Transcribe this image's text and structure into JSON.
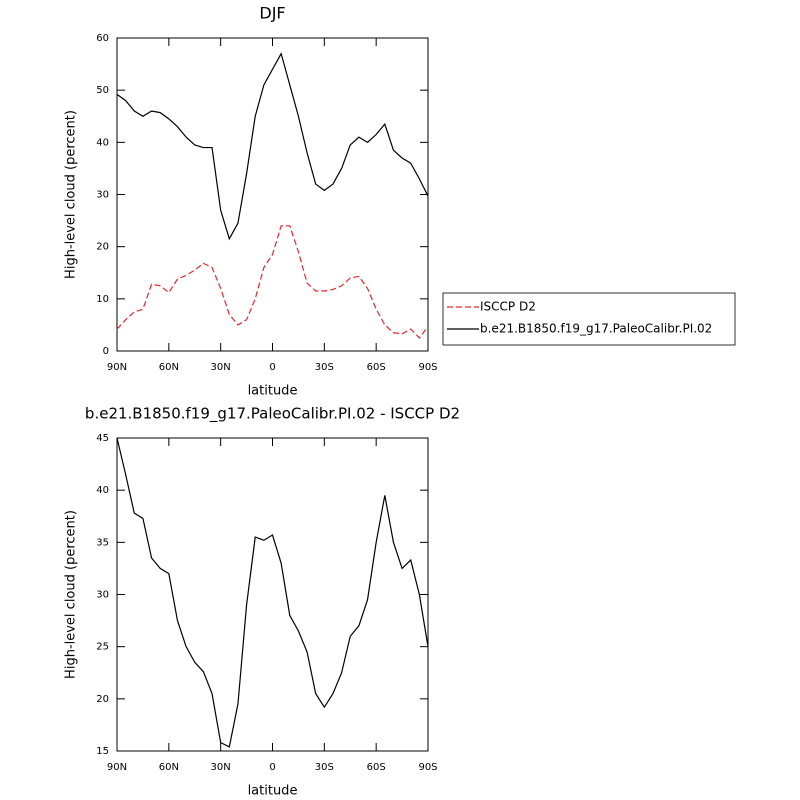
{
  "chart_data": [
    {
      "type": "line",
      "title": "DJF",
      "xlabel": "latitude",
      "ylabel": "High-level cloud (percent)",
      "x": [
        90,
        85,
        80,
        75,
        70,
        65,
        60,
        55,
        50,
        45,
        40,
        35,
        30,
        25,
        20,
        15,
        10,
        5,
        0,
        -5,
        -10,
        -15,
        -20,
        -25,
        -30,
        -35,
        -40,
        -45,
        -50,
        -55,
        -60,
        -65,
        -70,
        -75,
        -80,
        -85,
        -90
      ],
      "xlim": [
        90,
        -90
      ],
      "xticks": [
        {
          "value": 90,
          "label": "90N"
        },
        {
          "value": 60,
          "label": "60N"
        },
        {
          "value": 30,
          "label": "30N"
        },
        0,
        {
          "value": -30,
          "label": "30S"
        },
        {
          "value": -60,
          "label": "60S"
        },
        {
          "value": -90,
          "label": "90S"
        }
      ],
      "ylim": [
        0,
        60
      ],
      "yticks": [
        0,
        10,
        20,
        30,
        40,
        50,
        60
      ],
      "series": [
        {
          "name": "ISCCP D2",
          "color": "#e8262a",
          "dashed": true,
          "values": [
            4.2,
            6,
            7.5,
            8,
            12.8,
            12.5,
            11.2,
            13.8,
            14.5,
            15.5,
            16.8,
            16,
            12,
            7,
            5,
            6,
            10,
            16,
            18.5,
            24,
            24,
            19,
            13,
            11.5,
            11.5,
            11.8,
            12.5,
            14,
            14.3,
            12,
            8,
            5,
            3.5,
            3.3,
            4.2,
            2.5,
            4.7
          ]
        },
        {
          "name": "b.e21.B1850.f19_g17.PaleoCalibr.PI.02",
          "color": "#000000",
          "dashed": false,
          "values": [
            49.2,
            48,
            46,
            45,
            46,
            45.7,
            44.5,
            43,
            41,
            39.5,
            39,
            39,
            27,
            21.5,
            24.5,
            34,
            45,
            51,
            54,
            57,
            51,
            45,
            38,
            32,
            30.8,
            32,
            35,
            39.5,
            41,
            40,
            41.5,
            43.5,
            38.5,
            37,
            36,
            33,
            29.7
          ]
        }
      ]
    },
    {
      "type": "line",
      "title": "b.e21.B1850.f19_g17.PaleoCalibr.PI.02 - ISCCP D2",
      "xlabel": "latitude",
      "ylabel": "High-level cloud (percent)",
      "x": [
        90,
        85,
        80,
        75,
        70,
        65,
        60,
        55,
        50,
        45,
        40,
        35,
        30,
        25,
        20,
        15,
        10,
        5,
        0,
        -5,
        -10,
        -15,
        -20,
        -25,
        -30,
        -35,
        -40,
        -45,
        -50,
        -55,
        -60,
        -65,
        -70,
        -75,
        -80,
        -85,
        -90
      ],
      "xlim": [
        90,
        -90
      ],
      "xticks": [
        {
          "value": 90,
          "label": "90N"
        },
        {
          "value": 60,
          "label": "60N"
        },
        {
          "value": 30,
          "label": "30N"
        },
        0,
        {
          "value": -30,
          "label": "30S"
        },
        {
          "value": -60,
          "label": "60S"
        },
        {
          "value": -90,
          "label": "90S"
        }
      ],
      "ylim": [
        15,
        45
      ],
      "yticks": [
        15,
        20,
        25,
        30,
        35,
        40,
        45
      ],
      "color": "#000000",
      "values": [
        45,
        41.5,
        37.8,
        37.3,
        33.5,
        32.5,
        32,
        27.5,
        25,
        23.5,
        22.6,
        20.5,
        15.8,
        15.4,
        19.5,
        29,
        35.5,
        35.2,
        35.7,
        33,
        28,
        26.5,
        24.5,
        20.5,
        19.2,
        20.5,
        22.5,
        26,
        27,
        29.5,
        35,
        39.5,
        35,
        32.5,
        33.3,
        30,
        25
      ]
    }
  ]
}
